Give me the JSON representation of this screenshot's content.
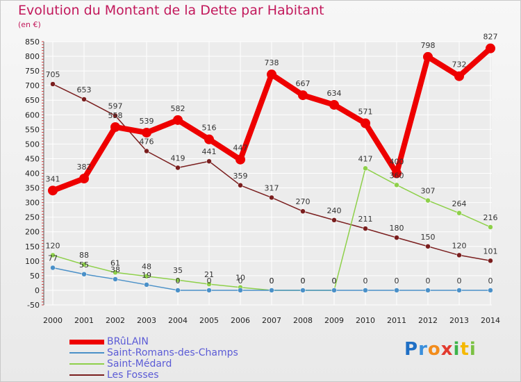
{
  "title": "Evolution du Montant de la Dette par Habitant",
  "unit": "(en €)",
  "logo": [
    "P",
    "r",
    "o",
    "x",
    "i",
    "t",
    "i"
  ],
  "logo_colors": [
    "#1f6fc5",
    "#3a8fdc",
    "#f28c1c",
    "#e23a2f",
    "#3db34a",
    "#f5b800",
    "#7ac142"
  ],
  "chart_data": {
    "type": "line",
    "x": [
      "2000",
      "2001",
      "2002",
      "2003",
      "2004",
      "2005",
      "2006",
      "2007",
      "2008",
      "2009",
      "2010",
      "2011",
      "2012",
      "2013",
      "2014"
    ],
    "ylim": [
      -50,
      850
    ],
    "yticks": [
      -50,
      0,
      50,
      100,
      150,
      200,
      250,
      300,
      350,
      400,
      450,
      500,
      550,
      600,
      650,
      700,
      750,
      800,
      850
    ],
    "grid": true,
    "legend_position": "bottom-left",
    "series": [
      {
        "name": "BRûLAIN",
        "color": "#ee0000",
        "values": [
          341,
          382,
          558,
          539,
          582,
          516,
          447,
          738,
          667,
          634,
          571,
          400,
          798,
          732,
          827
        ],
        "labels": [
          "341",
          "382",
          "558",
          "539",
          "582",
          "516",
          "447",
          "738",
          "667",
          "634",
          "571",
          "400",
          "798",
          "732",
          "827"
        ]
      },
      {
        "name": "Saint-Romans-des-Champs",
        "color": "#4a90c8",
        "values": [
          77,
          55,
          38,
          19,
          0,
          0,
          0,
          0,
          0,
          0,
          0,
          0,
          0,
          0,
          0
        ],
        "labels": [
          "77",
          "55",
          "38",
          "19",
          "0",
          "0",
          "0",
          "0",
          "0",
          "0",
          "0",
          "0",
          "0",
          "0",
          "0"
        ]
      },
      {
        "name": "Saint-Médard",
        "color": "#8ed04a",
        "values": [
          120,
          88,
          61,
          48,
          35,
          21,
          10,
          0,
          0,
          0,
          417,
          360,
          307,
          264,
          216
        ],
        "labels": [
          "120",
          "88",
          "61",
          "48",
          "35",
          "21",
          "10",
          "0",
          "0",
          "0",
          "417",
          "360",
          "307",
          "264",
          "216"
        ]
      },
      {
        "name": "Les Fosses",
        "color": "#7a1e1e",
        "values": [
          705,
          653,
          597,
          476,
          419,
          441,
          359,
          317,
          270,
          240,
          211,
          180,
          150,
          120,
          101
        ],
        "labels": [
          "705",
          "653",
          "597",
          "476",
          "419",
          "441",
          "359",
          "317",
          "270",
          "240",
          "211",
          "180",
          "150",
          "120",
          "101"
        ]
      }
    ]
  }
}
